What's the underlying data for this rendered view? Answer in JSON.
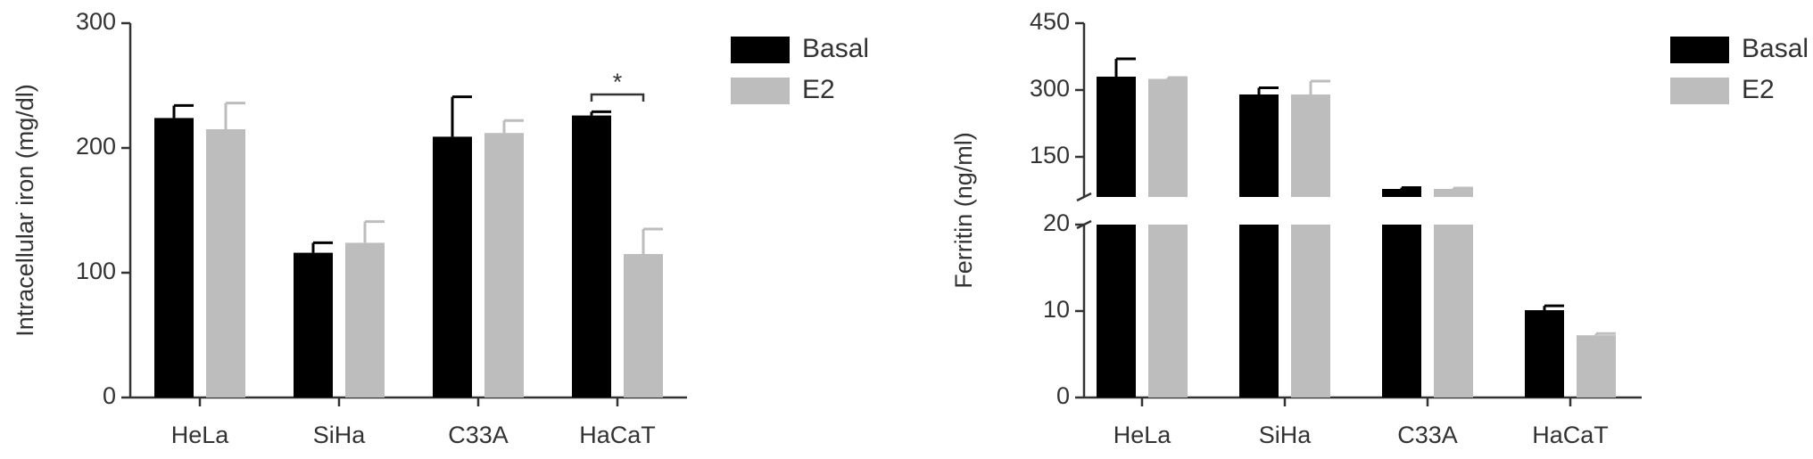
{
  "chart_data": [
    {
      "type": "bar",
      "ylabel": "Intracellular iron (mg/dl)",
      "categories": [
        "HeLa",
        "SiHa",
        "C33A",
        "HaCaT"
      ],
      "series": [
        {
          "name": "Basal",
          "color": "#000000",
          "values": [
            224,
            116,
            209,
            226
          ],
          "errors": [
            10,
            8,
            32,
            3
          ]
        },
        {
          "name": "E2",
          "color": "#bdbdbd",
          "values": [
            215,
            124,
            212,
            115
          ],
          "errors": [
            21,
            17,
            10,
            20
          ]
        }
      ],
      "ylim": [
        0,
        300
      ],
      "yticks": [
        0,
        100,
        200,
        300
      ],
      "annotations": [
        {
          "text": "*",
          "category": "HaCaT"
        }
      ]
    },
    {
      "type": "bar",
      "ylabel": "Ferritin (ng/ml)",
      "categories": [
        "HeLa",
        "SiHa",
        "C33A",
        "HaCaT"
      ],
      "series": [
        {
          "name": "Basal",
          "color": "#000000",
          "values": [
            330,
            290,
            78,
            10.1
          ],
          "errors": [
            40,
            15,
            3,
            0.5
          ]
        },
        {
          "name": "E2",
          "color": "#bdbdbd",
          "values": [
            325,
            290,
            78,
            7.2
          ],
          "errors": [
            3,
            30,
            2,
            0.2
          ]
        }
      ],
      "y_segments": [
        {
          "ylim": [
            0,
            20
          ],
          "yticks": [
            0,
            10,
            20
          ]
        },
        {
          "ylim": [
            60,
            450
          ],
          "yticks": [
            150,
            300,
            450
          ]
        }
      ]
    }
  ]
}
